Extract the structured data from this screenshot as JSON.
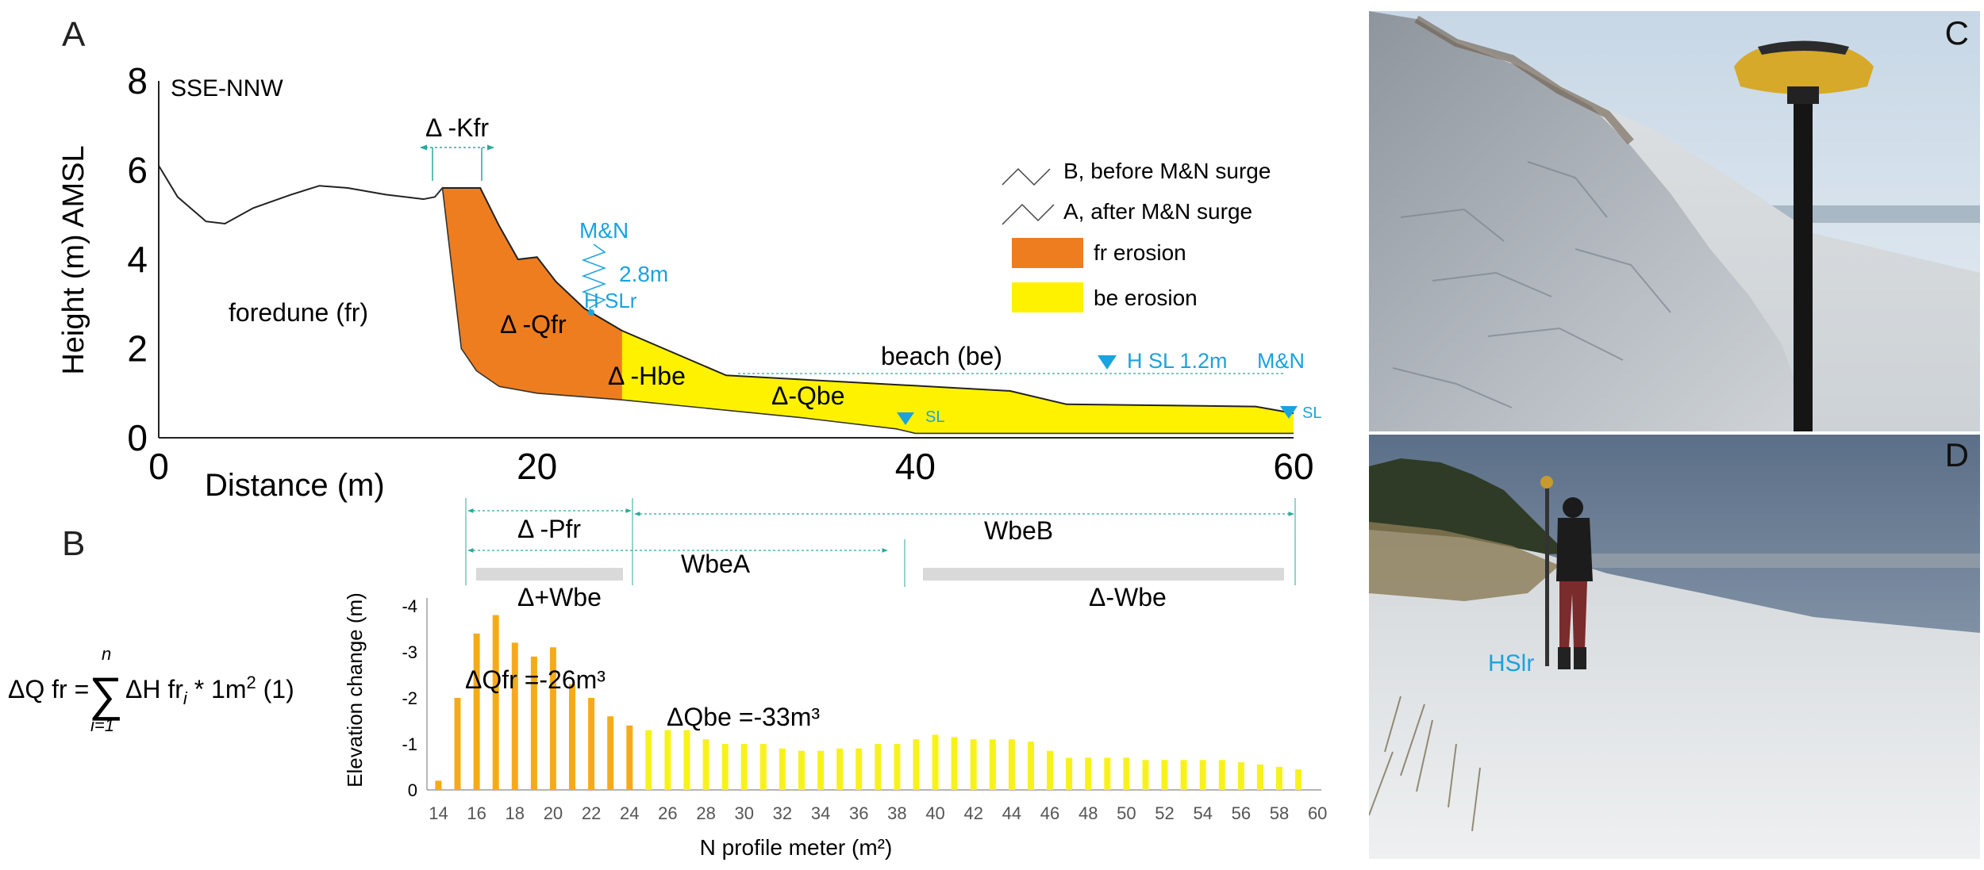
{
  "panels": {
    "A": "A",
    "B": "B",
    "C": "C",
    "D": "D"
  },
  "profile": {
    "direction": "SSE-NNW",
    "xlabel": "Distance (m)",
    "ylabel": "Height (m) AMSL",
    "xticks": [
      "0",
      "20",
      "40",
      "60"
    ],
    "yticks": [
      "0",
      "2",
      "4",
      "6",
      "8"
    ],
    "xlim": [
      0,
      60
    ],
    "ylim": [
      0,
      8
    ],
    "labels": {
      "kfr": "Δ -Kfr",
      "mn": "M&N",
      "surge_height": "2.8m",
      "hslr": "H SLr",
      "foredune": "foredune (fr)",
      "qfr": "Δ -Qfr",
      "hbe": "Δ -Hbe",
      "qbe": "Δ-Qbe",
      "beach": "beach (be)",
      "hsl": "H SL 1.2m",
      "hsl_mn": "M&N",
      "sl1": "SL",
      "sl2": "SL"
    },
    "legend": {
      "before": "B, before M&N surge",
      "after": "A, after M&N surge",
      "fr_erosion": "fr erosion",
      "be_erosion": "be erosion"
    },
    "widths": {
      "pfr": "Δ -Pfr",
      "wbeB": "WbeB",
      "wbeA": "WbeA",
      "plus_wbe": "Δ+Wbe",
      "minus_wbe": "Δ-Wbe"
    },
    "profile_before": [
      [
        0,
        6.1
      ],
      [
        1,
        5.4
      ],
      [
        2.5,
        4.85
      ],
      [
        3.5,
        4.8
      ],
      [
        5,
        5.15
      ],
      [
        7,
        5.45
      ],
      [
        8.5,
        5.65
      ],
      [
        10,
        5.6
      ],
      [
        12,
        5.45
      ],
      [
        14,
        5.35
      ],
      [
        14.6,
        5.4
      ],
      [
        15,
        5.6
      ],
      [
        17,
        5.6
      ],
      [
        18,
        4.75
      ],
      [
        19,
        4.0
      ],
      [
        20,
        4.05
      ],
      [
        21,
        3.5
      ],
      [
        22.5,
        2.9
      ],
      [
        24.5,
        2.4
      ],
      [
        30,
        1.4
      ],
      [
        45,
        1.05
      ],
      [
        48,
        0.75
      ],
      [
        58,
        0.7
      ],
      [
        60,
        0.55
      ]
    ],
    "profile_after": [
      [
        14,
        5.35
      ],
      [
        14.6,
        5.4
      ],
      [
        15,
        5.6
      ],
      [
        16,
        2.0
      ],
      [
        16.8,
        1.5
      ],
      [
        18,
        1.15
      ],
      [
        20,
        1.0
      ],
      [
        24.5,
        0.85
      ],
      [
        34,
        0.45
      ],
      [
        39,
        0.2
      ],
      [
        40,
        0.1
      ],
      [
        60,
        0.1
      ]
    ]
  },
  "formula": {
    "lhs": "ΔQ fr =",
    "sum": "∑",
    "upper": "n",
    "lower": "i=1",
    "term": "ΔH fr",
    "sub": "i",
    "times": " * 1m",
    "sup": "2",
    "num": " (1)"
  },
  "chart_data": {
    "type": "bar",
    "xlabel": "N profile meter (m²)",
    "ylabel": "Elevation change (m)",
    "ylim": [
      0,
      -4
    ],
    "yticks": [
      "0",
      "-1",
      "-2",
      "-3",
      "-4"
    ],
    "xticks": [
      "14",
      "16",
      "18",
      "20",
      "22",
      "24",
      "26",
      "28",
      "30",
      "32",
      "34",
      "36",
      "38",
      "40",
      "42",
      "44",
      "46",
      "48",
      "50",
      "52",
      "54",
      "56",
      "58",
      "60"
    ],
    "categories": [
      14,
      15,
      16,
      17,
      18,
      19,
      20,
      21,
      22,
      23,
      24,
      25,
      26,
      27,
      28,
      29,
      30,
      31,
      32,
      33,
      34,
      35,
      36,
      37,
      38,
      39,
      40,
      41,
      42,
      43,
      44,
      45,
      46,
      47,
      48,
      49,
      50,
      51,
      52,
      53,
      54,
      55,
      56,
      57,
      58,
      59
    ],
    "values": [
      -0.2,
      -2.0,
      -3.4,
      -3.8,
      -3.2,
      -2.9,
      -3.1,
      -2.3,
      -2.0,
      -1.6,
      -1.4,
      -1.3,
      -1.3,
      -1.3,
      -1.1,
      -1.0,
      -1.0,
      -1.0,
      -0.9,
      -0.85,
      -0.85,
      -0.9,
      -0.9,
      -1.0,
      -1.0,
      -1.1,
      -1.2,
      -1.15,
      -1.1,
      -1.1,
      -1.1,
      -1.05,
      -0.85,
      -0.7,
      -0.7,
      -0.7,
      -0.7,
      -0.65,
      -0.65,
      -0.65,
      -0.65,
      -0.65,
      -0.6,
      -0.55,
      -0.5,
      -0.45
    ],
    "fr_color": "#f5ab19",
    "be_color": "#f8f21c",
    "annotations": {
      "qfr": "ΔQfr =-26m³",
      "qbe": "ΔQbe =-33m³"
    }
  },
  "photo_d_text": "HSlr",
  "colors": {
    "orange": "#ee7d1f",
    "yellow": "#fff200",
    "cyan": "#1aa3dd",
    "teal": "#2aa89a"
  }
}
